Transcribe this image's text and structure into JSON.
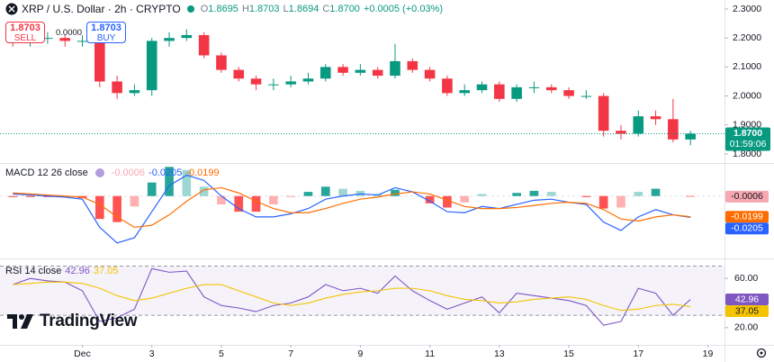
{
  "header": {
    "title": "XRP / U.S. Dollar · 2h · CRYPTO",
    "ohlc": [
      {
        "key": "O",
        "value": "1.8695"
      },
      {
        "key": "H",
        "value": "1.8703"
      },
      {
        "key": "L",
        "value": "1.8694"
      },
      {
        "key": "C",
        "value": "1.8700"
      }
    ],
    "change": "+0.0005 (+0.03%)",
    "sell": {
      "price": "1.8703",
      "label": "SELL"
    },
    "spread": "0.0000",
    "buy": {
      "price": "1.8703",
      "label": "BUY"
    },
    "logo": "TradingView"
  },
  "chart_data": [
    {
      "type": "candlestick",
      "x": [
        -1,
        -0.5,
        0,
        0.5,
        1,
        1.5,
        2,
        2.5,
        3,
        3.5,
        4,
        4.5,
        5,
        5.5,
        6,
        6.5,
        7,
        7.5,
        8,
        8.5,
        9,
        9.5,
        10,
        10.5,
        11,
        11.5,
        12,
        12.5,
        13,
        13.5,
        14,
        14.5,
        15,
        15.5,
        16,
        16.5,
        17,
        17.5,
        18,
        18.5
      ],
      "open": [
        2.2,
        2.19,
        2.2,
        2.2,
        2.19,
        2.19,
        2.05,
        2.01,
        2.02,
        2.19,
        2.2,
        2.21,
        2.14,
        2.09,
        2.06,
        2.04,
        2.04,
        2.05,
        2.06,
        2.1,
        2.08,
        2.09,
        2.07,
        2.12,
        2.09,
        2.06,
        2.01,
        2.02,
        2.04,
        1.99,
        2.03,
        2.03,
        2.02,
        2.0,
        2.0,
        1.88,
        1.87,
        1.93,
        1.92,
        1.85
      ],
      "high": [
        2.22,
        2.23,
        2.22,
        2.21,
        2.21,
        2.2,
        2.07,
        2.04,
        2.2,
        2.22,
        2.23,
        2.22,
        2.15,
        2.1,
        2.07,
        2.06,
        2.07,
        2.08,
        2.11,
        2.11,
        2.11,
        2.1,
        2.18,
        2.13,
        2.1,
        2.07,
        2.04,
        2.05,
        2.05,
        2.04,
        2.05,
        2.04,
        2.03,
        2.02,
        2.01,
        1.9,
        1.95,
        1.95,
        1.99,
        1.88
      ],
      "low": [
        2.17,
        2.17,
        2.18,
        2.17,
        2.17,
        2.03,
        1.99,
        2.0,
        2.0,
        2.17,
        2.19,
        2.13,
        2.08,
        2.05,
        2.02,
        2.02,
        2.03,
        2.04,
        2.05,
        2.07,
        2.07,
        2.06,
        2.06,
        2.08,
        2.05,
        2.0,
        2.0,
        2.01,
        1.98,
        1.98,
        2.01,
        2.01,
        1.99,
        1.99,
        1.86,
        1.85,
        1.86,
        1.9,
        1.84,
        1.83
      ],
      "close": [
        2.19,
        2.2,
        2.2,
        2.19,
        2.19,
        2.05,
        2.01,
        2.02,
        2.19,
        2.2,
        2.21,
        2.14,
        2.09,
        2.06,
        2.04,
        2.04,
        2.05,
        2.06,
        2.1,
        2.08,
        2.09,
        2.07,
        2.12,
        2.09,
        2.06,
        2.01,
        2.02,
        2.04,
        1.99,
        2.03,
        2.03,
        2.02,
        2.0,
        2.0,
        1.88,
        1.87,
        1.93,
        1.92,
        1.85,
        1.87
      ],
      "up_color": "#089981",
      "down_color": "#f23645",
      "last_label": "1.8700",
      "countdown": "01:59:06",
      "xlim": [
        -1.37,
        19.48
      ],
      "ylim": [
        1.772,
        2.331
      ],
      "xticks": [
        {
          "value": 1,
          "label": "Dec"
        },
        3,
        5,
        7,
        9,
        11,
        13,
        15,
        17,
        19
      ],
      "yticks": [
        {
          "value": 2.3,
          "label": "2.3000"
        },
        {
          "value": 2.2,
          "label": "2.2000"
        },
        {
          "value": 2.1,
          "label": "2.1000"
        },
        {
          "value": 2.0,
          "label": "2.0000"
        },
        {
          "value": 1.9,
          "label": "1.9000"
        },
        {
          "value": 1.8,
          "label": "1.8000"
        }
      ]
    },
    {
      "type": "macd",
      "title": "MACD 12 26 close",
      "histogram": {
        "values": [
          -0.001,
          -0.001,
          -0.001,
          -0.001,
          -0.002,
          -0.022,
          -0.025,
          -0.01,
          0.013,
          0.028,
          0.025,
          0.009,
          -0.008,
          -0.015,
          -0.015,
          -0.008,
          -0.001,
          0.004,
          0.009,
          0.007,
          0.005,
          0.002,
          0.006,
          0.0,
          -0.007,
          -0.011,
          -0.006,
          0.002,
          0.0,
          0.003,
          0.005,
          0.004,
          0.0,
          -0.001,
          -0.012,
          -0.011,
          0.004,
          0.007,
          0.0,
          -0.0006
        ],
        "value_label": "-0.0006",
        "pos_color": "#26a69a",
        "neg_color": "#ff5252",
        "label_color": "#f7a8b0"
      },
      "series": [
        {
          "color": "#2962ff",
          "value_label": "-0.0205",
          "values": [
            0.002,
            0.001,
            0.0,
            -0.001,
            -0.003,
            -0.03,
            -0.045,
            -0.04,
            -0.015,
            0.01,
            0.02,
            0.015,
            0.0,
            -0.012,
            -0.02,
            -0.02,
            -0.017,
            -0.012,
            -0.003,
            0.0,
            0.002,
            0.001,
            0.008,
            0.004,
            -0.005,
            -0.015,
            -0.016,
            -0.01,
            -0.012,
            -0.008,
            -0.004,
            -0.003,
            -0.006,
            -0.008,
            -0.025,
            -0.033,
            -0.02,
            -0.013,
            -0.018,
            -0.0205
          ]
        },
        {
          "color": "#ff6d00",
          "value_label": "-0.0199",
          "values": [
            0.003,
            0.002,
            0.001,
            0.0,
            -0.001,
            -0.008,
            -0.02,
            -0.03,
            -0.028,
            -0.018,
            -0.005,
            0.006,
            0.008,
            0.003,
            -0.005,
            -0.012,
            -0.016,
            -0.016,
            -0.012,
            -0.007,
            -0.003,
            -0.001,
            0.002,
            0.004,
            0.002,
            -0.004,
            -0.01,
            -0.012,
            -0.012,
            -0.011,
            -0.009,
            -0.007,
            -0.006,
            -0.007,
            -0.013,
            -0.022,
            -0.024,
            -0.02,
            -0.018,
            -0.0199
          ]
        }
      ],
      "ylim": [
        -0.059,
        0.03
      ]
    },
    {
      "type": "rsi",
      "title": "RSI 14 close",
      "series": [
        {
          "color": "#7e57c2",
          "value_label": "42.96",
          "values": [
            55,
            60,
            58,
            57,
            50,
            25,
            28,
            35,
            68,
            65,
            66,
            45,
            38,
            36,
            33,
            38,
            40,
            45,
            55,
            50,
            52,
            48,
            62,
            50,
            42,
            35,
            40,
            45,
            32,
            48,
            46,
            44,
            42,
            38,
            22,
            25,
            52,
            48,
            30,
            42.96
          ]
        },
        {
          "color": "#f5c400",
          "value_label": "37.05",
          "values": [
            55,
            56,
            57,
            57,
            56,
            52,
            46,
            42,
            44,
            48,
            52,
            55,
            55,
            50,
            45,
            40,
            38,
            40,
            44,
            47,
            49,
            50,
            52,
            52,
            50,
            46,
            43,
            42,
            40,
            41,
            43,
            44,
            45,
            43,
            38,
            34,
            35,
            38,
            39,
            37.05
          ]
        }
      ],
      "band": [
        30,
        70
      ],
      "ylim": [
        6.7,
        74.8
      ],
      "yticks": [
        {
          "value": 60,
          "label": "60.00"
        },
        {
          "value": 20,
          "label": "20.00"
        }
      ]
    }
  ]
}
